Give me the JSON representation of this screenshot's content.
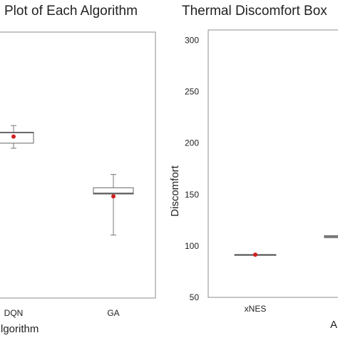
{
  "chart_data": [
    {
      "type": "box",
      "title": "Plot of Each Algorithm",
      "xlabel": "lgorithm",
      "ylabel": "",
      "categories": [
        "DQN",
        "GA"
      ],
      "boxes": [
        {
          "category": "DQN",
          "whisker_low": 167,
          "q1": 180,
          "median": 207,
          "q3": 208,
          "whisker_high": 225,
          "mean": 197
        },
        {
          "category": "GA",
          "whisker_low": -55,
          "q1": 50,
          "median": 52,
          "q3": 66,
          "whisker_high": 100,
          "mean": 44
        }
      ],
      "ylim": [
        -216,
        464
      ],
      "grid": false,
      "mean_marker_color": "#d11f1f"
    },
    {
      "type": "box",
      "title": "Thermal Discomfort Box",
      "xlabel": "A",
      "ylabel": "Discomfort",
      "categories": [
        "xNES",
        ""
      ],
      "yticks": [
        50,
        100,
        150,
        200,
        250,
        300
      ],
      "ylim": [
        50,
        310
      ],
      "boxes": [
        {
          "category": "xNES",
          "whisker_low": 91.5,
          "q1": 91.5,
          "median": 91.5,
          "q3": 91.5,
          "whisker_high": 91.5,
          "mean": 91.5
        },
        {
          "category": "",
          "whisker_low": 108,
          "q1": 108,
          "median": 109,
          "q3": 110,
          "whisker_high": 110
        }
      ],
      "grid": false,
      "mean_marker_color": "#d11f1f"
    }
  ]
}
